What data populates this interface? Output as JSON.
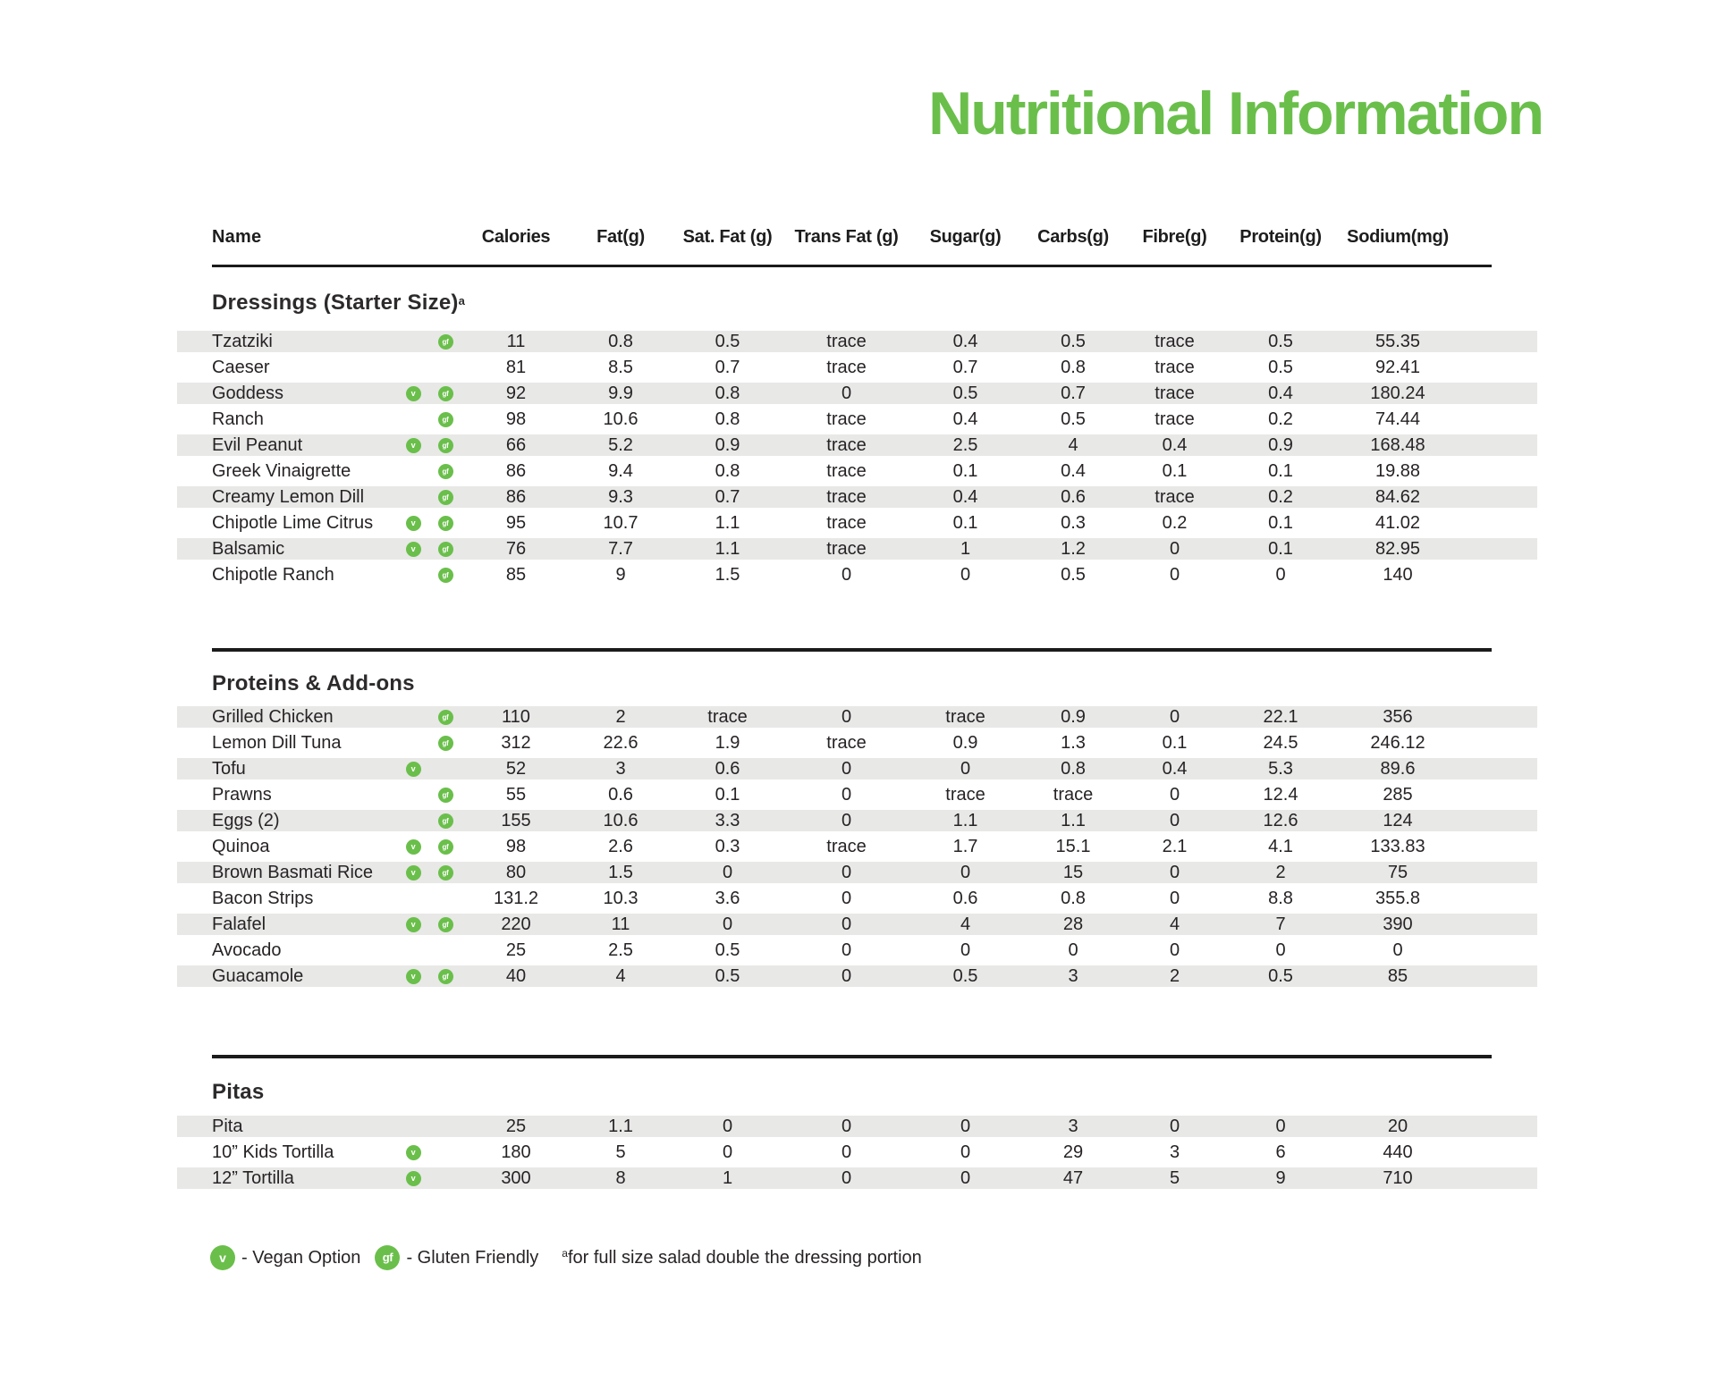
{
  "page": {
    "title": "Nutritional Information"
  },
  "colors": {
    "accent_green": "#6abf4b",
    "row_stripe": "#e8e8e7",
    "rule_black": "#1b1b1b",
    "text": "#272325"
  },
  "badges": {
    "vegan": "v",
    "gf": "gf"
  },
  "table": {
    "columns": [
      "Name",
      "Calories",
      "Fat(g)",
      "Sat. Fat (g)",
      "Trans Fat (g)",
      "Sugar(g)",
      "Carbs(g)",
      "Fibre(g)",
      "Protein(g)",
      "Sodium(mg)"
    ],
    "sections": [
      {
        "heading": "Dressings (Starter Size)",
        "footnote_marker": "a",
        "rows": [
          {
            "name": "Tzatziki",
            "vegan": false,
            "gf": true,
            "values": [
              "11",
              "0.8",
              "0.5",
              "trace",
              "0.4",
              "0.5",
              "trace",
              "0.5",
              "55.35"
            ]
          },
          {
            "name": "Caeser",
            "vegan": false,
            "gf": false,
            "values": [
              "81",
              "8.5",
              "0.7",
              "trace",
              "0.7",
              "0.8",
              "trace",
              "0.5",
              "92.41"
            ]
          },
          {
            "name": "Goddess",
            "vegan": true,
            "gf": true,
            "values": [
              "92",
              "9.9",
              "0.8",
              "0",
              "0.5",
              "0.7",
              "trace",
              "0.4",
              "180.24"
            ]
          },
          {
            "name": "Ranch",
            "vegan": false,
            "gf": true,
            "values": [
              "98",
              "10.6",
              "0.8",
              "trace",
              "0.4",
              "0.5",
              "trace",
              "0.2",
              "74.44"
            ]
          },
          {
            "name": "Evil Peanut",
            "vegan": true,
            "gf": true,
            "values": [
              "66",
              "5.2",
              "0.9",
              "trace",
              "2.5",
              "4",
              "0.4",
              "0.9",
              "168.48"
            ]
          },
          {
            "name": "Greek Vinaigrette",
            "vegan": false,
            "gf": true,
            "values": [
              "86",
              "9.4",
              "0.8",
              "trace",
              "0.1",
              "0.4",
              "0.1",
              "0.1",
              "19.88"
            ]
          },
          {
            "name": "Creamy Lemon Dill",
            "vegan": false,
            "gf": true,
            "values": [
              "86",
              "9.3",
              "0.7",
              "trace",
              "0.4",
              "0.6",
              "trace",
              "0.2",
              "84.62"
            ]
          },
          {
            "name": "Chipotle Lime Citrus",
            "vegan": true,
            "gf": true,
            "values": [
              "95",
              "10.7",
              "1.1",
              "trace",
              "0.1",
              "0.3",
              "0.2",
              "0.1",
              "41.02"
            ]
          },
          {
            "name": "Balsamic",
            "vegan": true,
            "gf": true,
            "values": [
              "76",
              "7.7",
              "1.1",
              "trace",
              "1",
              "1.2",
              "0",
              "0.1",
              "82.95"
            ]
          },
          {
            "name": "Chipotle Ranch",
            "vegan": false,
            "gf": true,
            "values": [
              "85",
              "9",
              "1.5",
              "0",
              "0",
              "0.5",
              "0",
              "0",
              "140"
            ]
          }
        ]
      },
      {
        "heading": "Proteins & Add-ons",
        "footnote_marker": "",
        "rows": [
          {
            "name": "Grilled Chicken",
            "vegan": false,
            "gf": true,
            "values": [
              "110",
              "2",
              "trace",
              "0",
              "trace",
              "0.9",
              "0",
              "22.1",
              "356"
            ]
          },
          {
            "name": "Lemon Dill Tuna",
            "vegan": false,
            "gf": true,
            "values": [
              "312",
              "22.6",
              "1.9",
              "trace",
              "0.9",
              "1.3",
              "0.1",
              "24.5",
              "246.12"
            ]
          },
          {
            "name": "Tofu",
            "vegan": true,
            "gf": false,
            "values": [
              "52",
              "3",
              "0.6",
              "0",
              "0",
              "0.8",
              "0.4",
              "5.3",
              "89.6"
            ]
          },
          {
            "name": "Prawns",
            "vegan": false,
            "gf": true,
            "values": [
              "55",
              "0.6",
              "0.1",
              "0",
              "trace",
              "trace",
              "0",
              "12.4",
              "285"
            ]
          },
          {
            "name": "Eggs (2)",
            "vegan": false,
            "gf": true,
            "values": [
              "155",
              "10.6",
              "3.3",
              "0",
              "1.1",
              "1.1",
              "0",
              "12.6",
              "124"
            ]
          },
          {
            "name": "Quinoa",
            "vegan": true,
            "gf": true,
            "values": [
              "98",
              "2.6",
              "0.3",
              "trace",
              "1.7",
              "15.1",
              "2.1",
              "4.1",
              "133.83"
            ]
          },
          {
            "name": "Brown Basmati Rice",
            "vegan": true,
            "gf": true,
            "values": [
              "80",
              "1.5",
              "0",
              "0",
              "0",
              "15",
              "0",
              "2",
              "75"
            ]
          },
          {
            "name": "Bacon Strips",
            "vegan": false,
            "gf": false,
            "values": [
              "131.2",
              "10.3",
              "3.6",
              "0",
              "0.6",
              "0.8",
              "0",
              "8.8",
              "355.8"
            ]
          },
          {
            "name": "Falafel",
            "vegan": true,
            "gf": true,
            "values": [
              "220",
              "11",
              "0",
              "0",
              "4",
              "28",
              "4",
              "7",
              "390"
            ]
          },
          {
            "name": "Avocado",
            "vegan": false,
            "gf": false,
            "values": [
              "25",
              "2.5",
              "0.5",
              "0",
              "0",
              "0",
              "0",
              "0",
              "0"
            ]
          },
          {
            "name": "Guacamole",
            "vegan": true,
            "gf": true,
            "values": [
              "40",
              "4",
              "0.5",
              "0",
              "0.5",
              "3",
              "2",
              "0.5",
              "85"
            ]
          }
        ]
      },
      {
        "heading": "Pitas",
        "footnote_marker": "",
        "rows": [
          {
            "name": "Pita",
            "vegan": false,
            "gf": false,
            "values": [
              "25",
              "1.1",
              "0",
              "0",
              "0",
              "3",
              "0",
              "0",
              "20"
            ]
          },
          {
            "name": "10” Kids Tortilla",
            "vegan": true,
            "gf": false,
            "values": [
              "180",
              "5",
              "0",
              "0",
              "0",
              "29",
              "3",
              "6",
              "440"
            ]
          },
          {
            "name": "12” Tortilla",
            "vegan": true,
            "gf": false,
            "values": [
              "300",
              "8",
              "1",
              "0",
              "0",
              "47",
              "5",
              "9",
              "710"
            ]
          }
        ]
      }
    ]
  },
  "legend": {
    "vegan_badge": "v",
    "vegan_label": "- Vegan Option",
    "gf_badge": "gf",
    "gf_label": "- Gluten Friendly",
    "footnote_marker": "a",
    "footnote_text": "for full size salad double the dressing portion"
  }
}
